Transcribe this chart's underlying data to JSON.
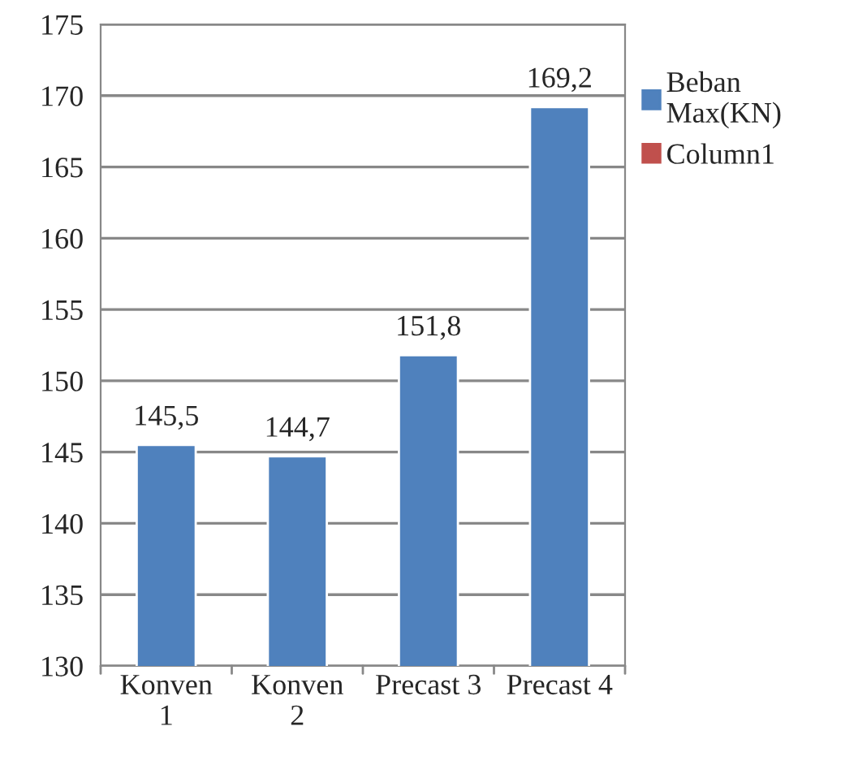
{
  "chart_data": {
    "type": "bar",
    "categories": [
      "Konven\n1",
      "Konven\n2",
      "Precast 3",
      "Precast 4"
    ],
    "series": [
      {
        "name": "Beban\nMax(KN)",
        "color": "#4f81bd",
        "values": [
          145.5,
          144.7,
          151.8,
          169.2
        ],
        "value_labels": [
          "145,5",
          "144,7",
          "151,8",
          "169,2"
        ]
      },
      {
        "name": "Column1",
        "color": "#c0504d",
        "values": [
          null,
          null,
          null,
          null
        ]
      }
    ],
    "ylim": [
      130,
      175
    ],
    "yticks": [
      130,
      135,
      140,
      145,
      150,
      155,
      160,
      165,
      170,
      175
    ],
    "grid": "y",
    "legend": "right"
  }
}
